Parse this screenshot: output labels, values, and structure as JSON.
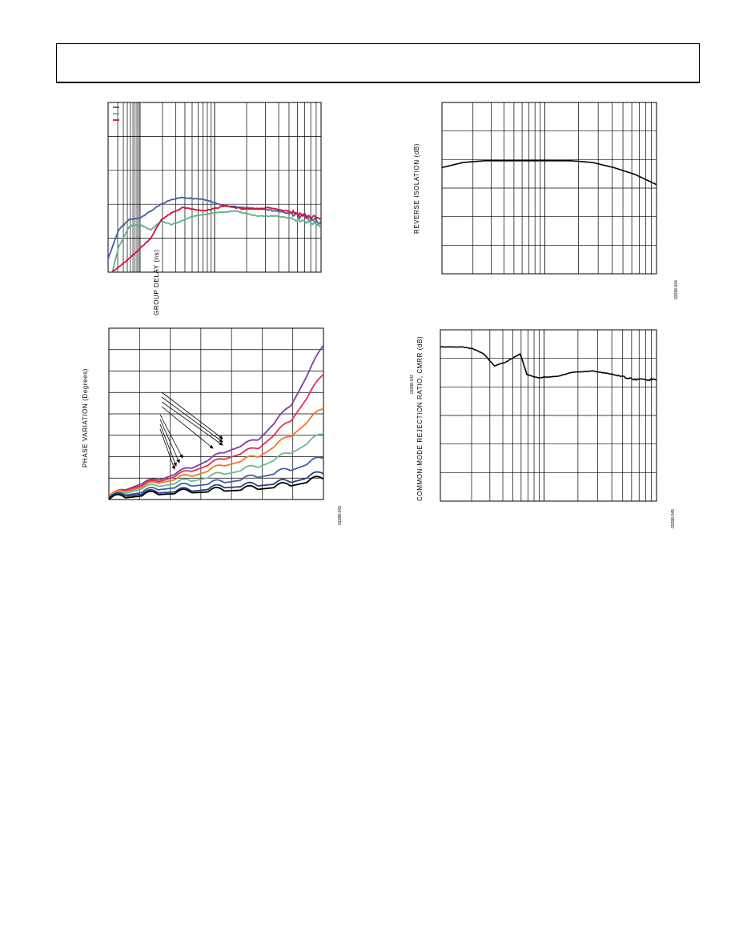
{
  "charts": [
    {
      "id": "group-delay",
      "ylabel": "GROUP DELAY (ns)",
      "figure_id": "03288-042",
      "colors": [
        "#3f5fa0",
        "#5fb08a",
        "#d0103a"
      ]
    },
    {
      "id": "reverse-isolation",
      "ylabel": "REVERSE ISOLATION (dB)",
      "figure_id": "03288-044",
      "colors": [
        "#000000"
      ]
    },
    {
      "id": "phase-variation",
      "ylabel": "PHASE VARIATION (Degrees)",
      "figure_id": "03288-043",
      "colors": [
        "#7a3fa0",
        "#e0305a",
        "#f07820",
        "#6ab898",
        "#3f5fa0",
        "#2a3f80",
        "#000000"
      ]
    },
    {
      "id": "cmrr",
      "ylabel": "COMMON-MODE REJECTION RATIO, CMRR (dB)",
      "figure_id": "03288-045",
      "colors": [
        "#000000"
      ]
    }
  ],
  "chart_data": [
    {
      "type": "line",
      "title": "",
      "ylabel": "GROUP DELAY (ns)",
      "x_scale": "log",
      "grid": true,
      "legend": "top-left",
      "series": [
        {
          "values": [
            [
              0,
              0.08
            ],
            [
              0.05,
              0.25
            ],
            [
              0.1,
              0.31
            ],
            [
              0.15,
              0.32
            ],
            [
              0.2,
              0.36
            ],
            [
              0.25,
              0.4
            ],
            [
              0.3,
              0.43
            ],
            [
              0.35,
              0.44
            ],
            [
              0.45,
              0.43
            ],
            [
              0.55,
              0.39
            ],
            [
              0.65,
              0.38
            ],
            [
              0.8,
              0.36
            ],
            [
              0.9,
              0.33
            ],
            [
              1,
              0.29
            ]
          ]
        },
        {
          "values": [
            [
              0,
              -0.1
            ],
            [
              0.05,
              0.15
            ],
            [
              0.1,
              0.27
            ],
            [
              0.15,
              0.28
            ],
            [
              0.2,
              0.25
            ],
            [
              0.25,
              0.3
            ],
            [
              0.3,
              0.28
            ],
            [
              0.4,
              0.33
            ],
            [
              0.5,
              0.35
            ],
            [
              0.6,
              0.36
            ],
            [
              0.7,
              0.33
            ],
            [
              0.8,
              0.33
            ],
            [
              0.9,
              0.31
            ],
            [
              1,
              0.28
            ]
          ]
        },
        {
          "values": [
            [
              0,
              -0.02
            ],
            [
              0.1,
              0.08
            ],
            [
              0.2,
              0.2
            ],
            [
              0.25,
              0.31
            ],
            [
              0.3,
              0.35
            ],
            [
              0.35,
              0.38
            ],
            [
              0.45,
              0.36
            ],
            [
              0.55,
              0.39
            ],
            [
              0.65,
              0.37
            ],
            [
              0.75,
              0.38
            ],
            [
              0.85,
              0.36
            ],
            [
              1,
              0.31
            ]
          ]
        }
      ]
    },
    {
      "type": "line",
      "title": "",
      "ylabel": "REVERSE ISOLATION (dB)",
      "x_scale": "log",
      "grid": true,
      "series": [
        {
          "values": [
            [
              0,
              0.62
            ],
            [
              0.1,
              0.65
            ],
            [
              0.2,
              0.66
            ],
            [
              0.4,
              0.66
            ],
            [
              0.6,
              0.66
            ],
            [
              0.7,
              0.65
            ],
            [
              0.8,
              0.62
            ],
            [
              0.9,
              0.58
            ],
            [
              1,
              0.52
            ]
          ]
        }
      ]
    },
    {
      "type": "line",
      "title": "",
      "ylabel": "PHASE VARIATION (Degrees)",
      "grid": true,
      "series": [
        {
          "values": [
            [
              0,
              0.02
            ],
            [
              0.15,
              0.09
            ],
            [
              0.25,
              0.12
            ],
            [
              0.4,
              0.19
            ],
            [
              0.55,
              0.28
            ],
            [
              0.7,
              0.35
            ],
            [
              0.85,
              0.55
            ],
            [
              1,
              0.9
            ]
          ]
        },
        {
          "values": [
            [
              0,
              0.02
            ],
            [
              0.15,
              0.08
            ],
            [
              0.25,
              0.11
            ],
            [
              0.4,
              0.17
            ],
            [
              0.55,
              0.24
            ],
            [
              0.7,
              0.3
            ],
            [
              0.85,
              0.46
            ],
            [
              1,
              0.73
            ]
          ]
        },
        {
          "values": [
            [
              0,
              0.02
            ],
            [
              0.15,
              0.07
            ],
            [
              0.25,
              0.1
            ],
            [
              0.4,
              0.14
            ],
            [
              0.55,
              0.2
            ],
            [
              0.7,
              0.25
            ],
            [
              0.85,
              0.37
            ],
            [
              1,
              0.53
            ]
          ]
        },
        {
          "values": [
            [
              0,
              0.01
            ],
            [
              0.15,
              0.06
            ],
            [
              0.25,
              0.08
            ],
            [
              0.4,
              0.11
            ],
            [
              0.55,
              0.15
            ],
            [
              0.7,
              0.19
            ],
            [
              0.85,
              0.27
            ],
            [
              1,
              0.38
            ]
          ]
        },
        {
          "values": [
            [
              0,
              0.01
            ],
            [
              0.15,
              0.04
            ],
            [
              0.25,
              0.06
            ],
            [
              0.4,
              0.08
            ],
            [
              0.55,
              0.1
            ],
            [
              0.7,
              0.13
            ],
            [
              0.85,
              0.17
            ],
            [
              1,
              0.24
            ]
          ]
        },
        {
          "values": [
            [
              0,
              0.01
            ],
            [
              0.15,
              0.03
            ],
            [
              0.25,
              0.04
            ],
            [
              0.4,
              0.05
            ],
            [
              0.55,
              0.07
            ],
            [
              0.7,
              0.08
            ],
            [
              0.85,
              0.1
            ],
            [
              1,
              0.15
            ]
          ]
        },
        {
          "values": [
            [
              0,
              0.0
            ],
            [
              0.15,
              0.02
            ],
            [
              0.25,
              0.03
            ],
            [
              0.4,
              0.04
            ],
            [
              0.55,
              0.05
            ],
            [
              0.7,
              0.06
            ],
            [
              0.85,
              0.08
            ],
            [
              1,
              0.12
            ]
          ]
        }
      ]
    },
    {
      "type": "line",
      "title": "",
      "ylabel": "COMMON-MODE REJECTION RATIO, CMRR (dB)",
      "x_scale": "log",
      "grid": true,
      "series": [
        {
          "values": [
            [
              0,
              0.9
            ],
            [
              0.1,
              0.9
            ],
            [
              0.15,
              0.89
            ],
            [
              0.2,
              0.86
            ],
            [
              0.25,
              0.79
            ],
            [
              0.3,
              0.81
            ],
            [
              0.37,
              0.86
            ],
            [
              0.4,
              0.74
            ],
            [
              0.45,
              0.72
            ],
            [
              0.55,
              0.73
            ],
            [
              0.6,
              0.75
            ],
            [
              0.7,
              0.76
            ],
            [
              0.8,
              0.74
            ],
            [
              0.9,
              0.71
            ],
            [
              1,
              0.71
            ]
          ]
        }
      ]
    }
  ]
}
